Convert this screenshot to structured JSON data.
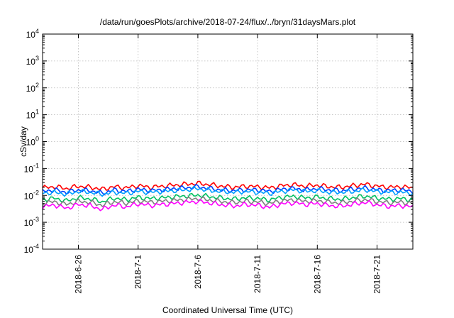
{
  "chart_data": {
    "type": "line",
    "title": "/data/run/goesPlots/archive/2018-07-24/flux/../bryn/31daysMars.plot",
    "xlabel": "Coordinated Universal Time (UTC)",
    "ylabel": "cSv/day",
    "y_scale": "log",
    "ylim": [
      0.0001,
      10000
    ],
    "xlim": [
      "2018-06-23",
      "2018-07-24"
    ],
    "grid": true,
    "x_ticks": [
      {
        "date": "2018-06-26",
        "label": "2018-6-26"
      },
      {
        "date": "2018-07-01",
        "label": "2018-7-1"
      },
      {
        "date": "2018-07-06",
        "label": "2018-7-6"
      },
      {
        "date": "2018-07-11",
        "label": "2018-7-11"
      },
      {
        "date": "2018-07-16",
        "label": "2018-7-16"
      },
      {
        "date": "2018-07-21",
        "label": "2018-7-21"
      }
    ],
    "y_ticks": [
      {
        "value": 0.0001,
        "base": "10",
        "exp": "-4"
      },
      {
        "value": 0.001,
        "base": "10",
        "exp": "-3"
      },
      {
        "value": 0.01,
        "base": "10",
        "exp": "-2"
      },
      {
        "value": 0.1,
        "base": "10",
        "exp": "-1"
      },
      {
        "value": 1,
        "base": "10",
        "exp": "0"
      },
      {
        "value": 10,
        "base": "10",
        "exp": "1"
      },
      {
        "value": 100,
        "base": "10",
        "exp": "2"
      },
      {
        "value": 1000,
        "base": "10",
        "exp": "3"
      },
      {
        "value": 10000,
        "base": "10",
        "exp": "4"
      }
    ],
    "series": [
      {
        "color": "#ff0000",
        "x": [
          "2018-06-23",
          "2018-06-24",
          "2018-06-25",
          "2018-06-26",
          "2018-06-27",
          "2018-06-28",
          "2018-06-29",
          "2018-06-30",
          "2018-07-01",
          "2018-07-02",
          "2018-07-03",
          "2018-07-04",
          "2018-07-05",
          "2018-07-06",
          "2018-07-07",
          "2018-07-08",
          "2018-07-09",
          "2018-07-10",
          "2018-07-11",
          "2018-07-12",
          "2018-07-13",
          "2018-07-14",
          "2018-07-15",
          "2018-07-16",
          "2018-07-17",
          "2018-07-18",
          "2018-07-19",
          "2018-07-20",
          "2018-07-21",
          "2018-07-22",
          "2018-07-23",
          "2018-07-24"
        ],
        "y": [
          0.019,
          0.021,
          0.018,
          0.022,
          0.02,
          0.017,
          0.021,
          0.019,
          0.023,
          0.02,
          0.022,
          0.024,
          0.026,
          0.028,
          0.025,
          0.022,
          0.02,
          0.022,
          0.021,
          0.019,
          0.023,
          0.025,
          0.022,
          0.024,
          0.021,
          0.02,
          0.023,
          0.026,
          0.022,
          0.02,
          0.021,
          0.019
        ]
      },
      {
        "color": "#0040ff",
        "x": [
          "2018-06-23",
          "2018-06-24",
          "2018-06-25",
          "2018-06-26",
          "2018-06-27",
          "2018-06-28",
          "2018-06-29",
          "2018-06-30",
          "2018-07-01",
          "2018-07-02",
          "2018-07-03",
          "2018-07-04",
          "2018-07-05",
          "2018-07-06",
          "2018-07-07",
          "2018-07-08",
          "2018-07-09",
          "2018-07-10",
          "2018-07-11",
          "2018-07-12",
          "2018-07-13",
          "2018-07-14",
          "2018-07-15",
          "2018-07-16",
          "2018-07-17",
          "2018-07-18",
          "2018-07-19",
          "2018-07-20",
          "2018-07-21",
          "2018-07-22",
          "2018-07-23",
          "2018-07-24"
        ],
        "y": [
          0.014,
          0.016,
          0.013,
          0.016,
          0.015,
          0.012,
          0.016,
          0.014,
          0.017,
          0.015,
          0.016,
          0.018,
          0.019,
          0.021,
          0.018,
          0.016,
          0.015,
          0.016,
          0.016,
          0.014,
          0.017,
          0.018,
          0.016,
          0.018,
          0.016,
          0.015,
          0.017,
          0.019,
          0.016,
          0.015,
          0.016,
          0.014
        ]
      },
      {
        "color": "#00a0ff",
        "x": [
          "2018-06-23",
          "2018-06-24",
          "2018-06-25",
          "2018-06-26",
          "2018-06-27",
          "2018-06-28",
          "2018-06-29",
          "2018-06-30",
          "2018-07-01",
          "2018-07-02",
          "2018-07-03",
          "2018-07-04",
          "2018-07-05",
          "2018-07-06",
          "2018-07-07",
          "2018-07-08",
          "2018-07-09",
          "2018-07-10",
          "2018-07-11",
          "2018-07-12",
          "2018-07-13",
          "2018-07-14",
          "2018-07-15",
          "2018-07-16",
          "2018-07-17",
          "2018-07-18",
          "2018-07-19",
          "2018-07-20",
          "2018-07-21",
          "2018-07-22",
          "2018-07-23",
          "2018-07-24"
        ],
        "y": [
          0.012,
          0.013,
          0.011,
          0.014,
          0.013,
          0.011,
          0.013,
          0.012,
          0.014,
          0.013,
          0.014,
          0.015,
          0.016,
          0.018,
          0.015,
          0.014,
          0.013,
          0.014,
          0.013,
          0.012,
          0.014,
          0.016,
          0.014,
          0.015,
          0.013,
          0.013,
          0.014,
          0.016,
          0.014,
          0.013,
          0.013,
          0.012
        ]
      },
      {
        "color": "#00c060",
        "x": [
          "2018-06-23",
          "2018-06-24",
          "2018-06-25",
          "2018-06-26",
          "2018-06-27",
          "2018-06-28",
          "2018-06-29",
          "2018-06-30",
          "2018-07-01",
          "2018-07-02",
          "2018-07-03",
          "2018-07-04",
          "2018-07-05",
          "2018-07-06",
          "2018-07-07",
          "2018-07-08",
          "2018-07-09",
          "2018-07-10",
          "2018-07-11",
          "2018-07-12",
          "2018-07-13",
          "2018-07-14",
          "2018-07-15",
          "2018-07-16",
          "2018-07-17",
          "2018-07-18",
          "2018-07-19",
          "2018-07-20",
          "2018-07-21",
          "2018-07-22",
          "2018-07-23",
          "2018-07-24"
        ],
        "y": [
          0.007,
          0.0078,
          0.0062,
          0.0082,
          0.0074,
          0.0058,
          0.0079,
          0.0069,
          0.0085,
          0.0076,
          0.0081,
          0.0088,
          0.0095,
          0.0102,
          0.009,
          0.008,
          0.0073,
          0.0081,
          0.0077,
          0.0068,
          0.0084,
          0.0092,
          0.0081,
          0.0087,
          0.0076,
          0.0072,
          0.0083,
          0.0094,
          0.008,
          0.0072,
          0.0076,
          0.0069
        ]
      },
      {
        "color": "#808080",
        "x": [
          "2018-06-23",
          "2018-06-24",
          "2018-06-25",
          "2018-06-26",
          "2018-06-27",
          "2018-06-28",
          "2018-06-29",
          "2018-06-30",
          "2018-07-01",
          "2018-07-02",
          "2018-07-03",
          "2018-07-04",
          "2018-07-05",
          "2018-07-06",
          "2018-07-07",
          "2018-07-08",
          "2018-07-09",
          "2018-07-10",
          "2018-07-11",
          "2018-07-12",
          "2018-07-13",
          "2018-07-14",
          "2018-07-15",
          "2018-07-16",
          "2018-07-17",
          "2018-07-18",
          "2018-07-19",
          "2018-07-20",
          "2018-07-21",
          "2018-07-22",
          "2018-07-23",
          "2018-07-24"
        ],
        "y": [
          0.0052,
          0.0058,
          0.0046,
          0.006,
          0.0055,
          0.0043,
          0.0058,
          0.0051,
          0.0063,
          0.0056,
          0.006,
          0.0065,
          0.007,
          0.0076,
          0.0067,
          0.0059,
          0.0054,
          0.006,
          0.0057,
          0.005,
          0.0062,
          0.0068,
          0.006,
          0.0064,
          0.0056,
          0.0053,
          0.0061,
          0.007,
          0.0059,
          0.0053,
          0.0056,
          0.0051
        ]
      },
      {
        "color": "#ff00ff",
        "x": [
          "2018-06-23",
          "2018-06-24",
          "2018-06-25",
          "2018-06-26",
          "2018-06-27",
          "2018-06-28",
          "2018-06-29",
          "2018-06-30",
          "2018-07-01",
          "2018-07-02",
          "2018-07-03",
          "2018-07-04",
          "2018-07-05",
          "2018-07-06",
          "2018-07-07",
          "2018-07-08",
          "2018-07-09",
          "2018-07-10",
          "2018-07-11",
          "2018-07-12",
          "2018-07-13",
          "2018-07-14",
          "2018-07-15",
          "2018-07-16",
          "2018-07-17",
          "2018-07-18",
          "2018-07-19",
          "2018-07-20",
          "2018-07-21",
          "2018-07-22",
          "2018-07-23",
          "2018-07-24"
        ],
        "y": [
          0.0038,
          0.0044,
          0.0033,
          0.0046,
          0.0041,
          0.003,
          0.0044,
          0.0037,
          0.0049,
          0.0042,
          0.0046,
          0.005,
          0.0055,
          0.006,
          0.0052,
          0.0045,
          0.004,
          0.0046,
          0.0043,
          0.0036,
          0.0048,
          0.0053,
          0.0046,
          0.005,
          0.0042,
          0.0039,
          0.0047,
          0.0055,
          0.0045,
          0.0039,
          0.0042,
          0.0037
        ]
      }
    ]
  }
}
